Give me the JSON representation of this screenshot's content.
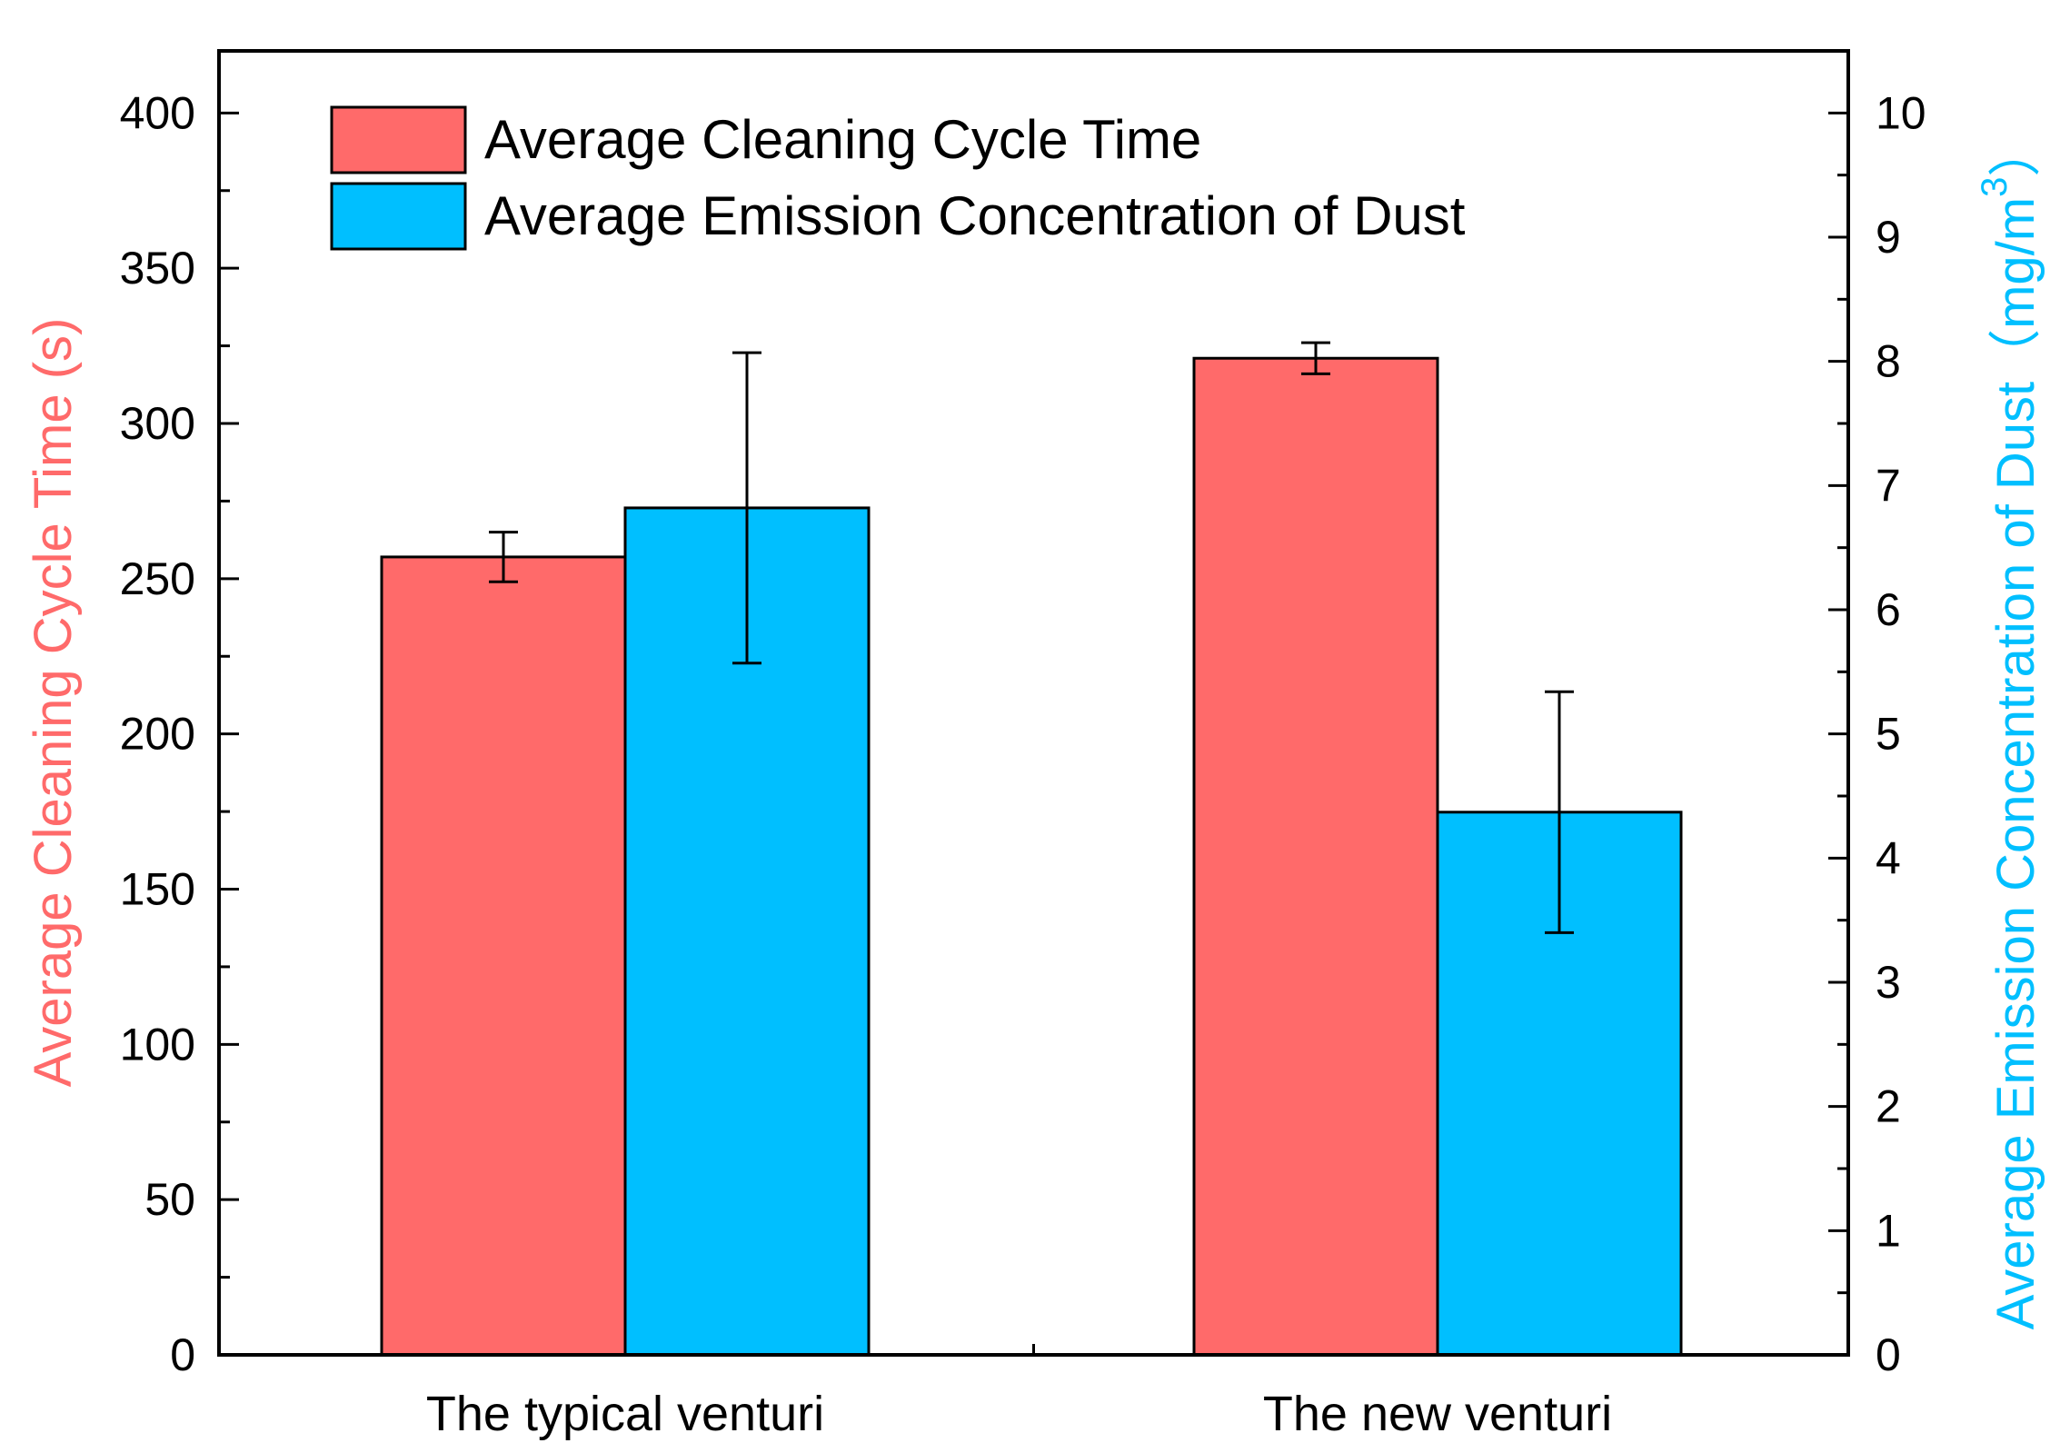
{
  "chart_data": {
    "type": "bar",
    "categories": [
      "The typical venturi",
      "The new venturi"
    ],
    "series": [
      {
        "name": "Average Cleaning Cycle Time",
        "axis": "left",
        "color": "#FF6A6A",
        "values": [
          257,
          321
        ],
        "errors": [
          8,
          5
        ]
      },
      {
        "name": "Average Emission Concentration of Dust",
        "axis": "right",
        "color": "#00BFFF",
        "values": [
          6.82,
          4.37
        ],
        "errors": [
          1.25,
          0.97
        ]
      }
    ],
    "ylabel_left": "Average Cleaning Cycle Time (s)",
    "ylabel_right_prefix": "Average Emission Concentration of Dust（mg/m",
    "ylabel_right_sup": "3",
    "ylabel_right_suffix": "）",
    "ylim_left": [
      0,
      420
    ],
    "ylim_right": [
      0,
      10.5
    ],
    "yticks_left": [
      0,
      50,
      100,
      150,
      200,
      250,
      300,
      350,
      400
    ],
    "yticks_right": [
      0,
      1,
      2,
      3,
      4,
      5,
      6,
      7,
      8,
      9,
      10
    ],
    "legend_position": "top-left",
    "grid": false
  }
}
